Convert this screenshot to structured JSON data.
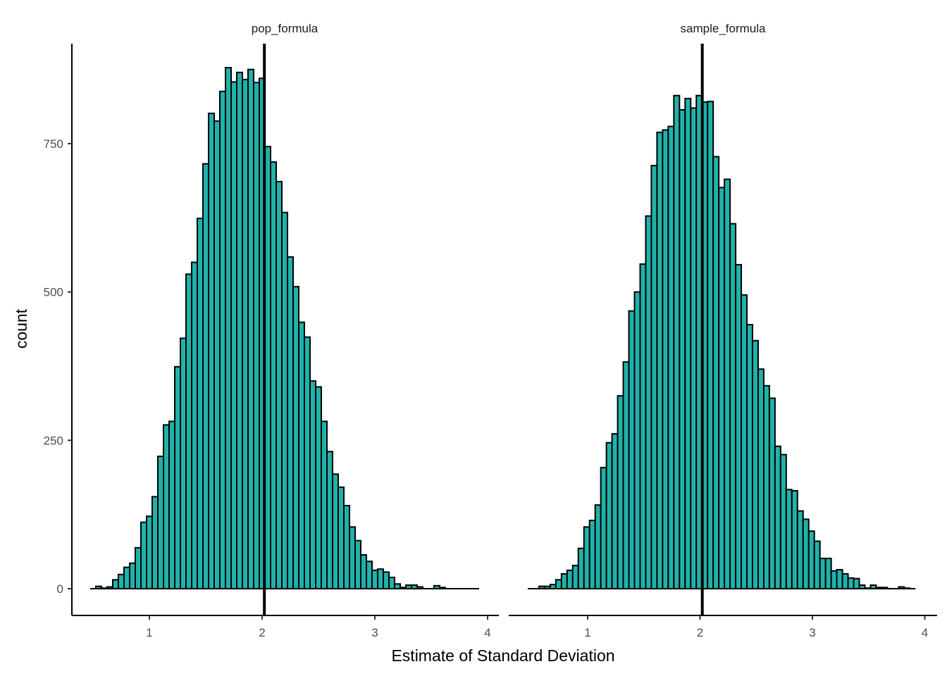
{
  "chart_data": {
    "type": "bar",
    "subtype": "histogram-faceted",
    "xlabel": "Estimate of Standard Deviation",
    "ylabel": "count",
    "xlim": [
      0.4,
      4.05
    ],
    "ylim": [
      -40,
      910
    ],
    "x_ticks": [
      1,
      2,
      3,
      4
    ],
    "y_ticks": [
      0,
      250,
      500,
      750
    ],
    "grid": false,
    "fill_color": "#20B2AA",
    "outline_color": "#000000",
    "reference_line": 2.02,
    "bin_width": 0.05,
    "panels": [
      {
        "name": "pop_formula",
        "bin_start": 0.475,
        "counts": [
          0,
          4,
          1,
          3,
          15,
          24,
          36,
          43,
          69,
          112,
          122,
          155,
          223,
          276,
          282,
          374,
          422,
          530,
          550,
          624,
          716,
          801,
          788,
          838,
          878,
          854,
          870,
          858,
          875,
          853,
          860,
          745,
          719,
          686,
          634,
          559,
          509,
          449,
          424,
          350,
          340,
          282,
          231,
          193,
          171,
          140,
          104,
          81,
          57,
          46,
          31,
          33,
          28,
          19,
          8,
          2,
          6,
          6,
          3,
          0,
          0,
          5,
          2,
          0,
          0,
          0,
          0,
          0,
          0
        ]
      },
      {
        "name": "sample_formula",
        "bin_start": 0.467,
        "counts": [
          0,
          0,
          4,
          4,
          7,
          15,
          25,
          31,
          39,
          68,
          104,
          115,
          141,
          204,
          246,
          261,
          325,
          382,
          468,
          500,
          547,
          628,
          713,
          769,
          773,
          779,
          831,
          807,
          826,
          810,
          831,
          820,
          821,
          728,
          676,
          690,
          615,
          546,
          495,
          445,
          418,
          370,
          342,
          321,
          240,
          226,
          167,
          165,
          131,
          117,
          97,
          80,
          51,
          51,
          30,
          32,
          25,
          18,
          17,
          6,
          1,
          6,
          2,
          2,
          0,
          0,
          3,
          1,
          0
        ]
      }
    ]
  }
}
